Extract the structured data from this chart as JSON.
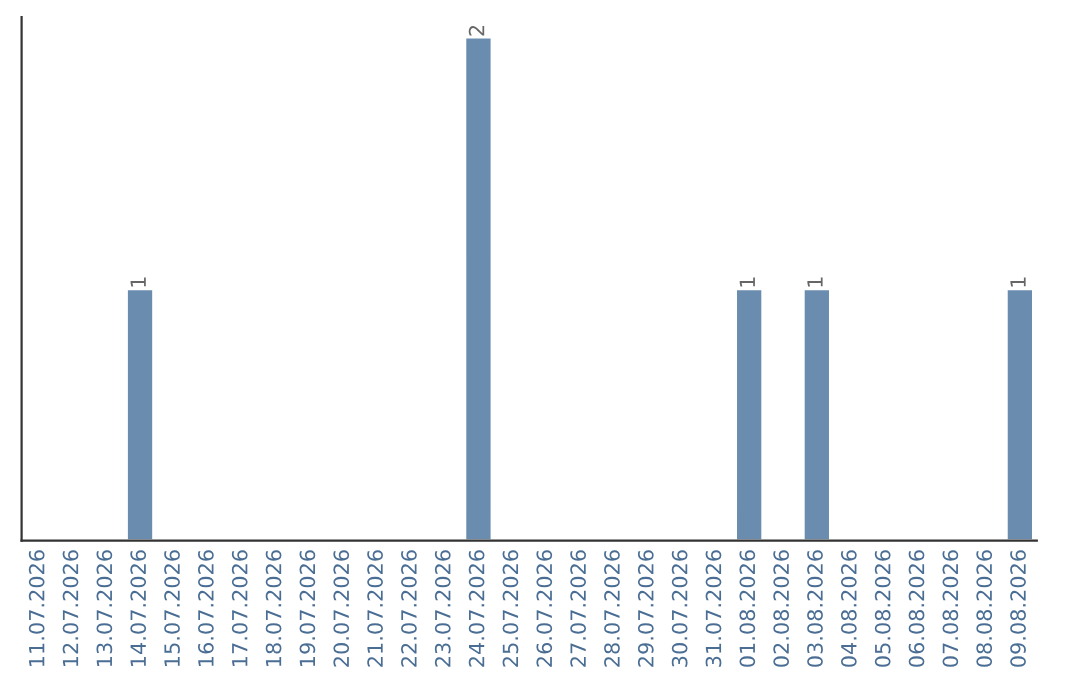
{
  "chart_data": {
    "type": "bar",
    "categories": [
      "11.07.2026",
      "12.07.2026",
      "13.07.2026",
      "14.07.2026",
      "15.07.2026",
      "16.07.2026",
      "17.07.2026",
      "18.07.2026",
      "19.07.2026",
      "20.07.2026",
      "21.07.2026",
      "22.07.2026",
      "23.07.2026",
      "24.07.2026",
      "25.07.2026",
      "26.07.2026",
      "27.07.2026",
      "28.07.2026",
      "29.07.2026",
      "30.07.2026",
      "31.07.2026",
      "01.08.2026",
      "02.08.2026",
      "03.08.2026",
      "04.08.2026",
      "05.08.2026",
      "06.08.2026",
      "07.08.2026",
      "08.08.2026",
      "09.08.2026"
    ],
    "values": [
      0,
      0,
      0,
      1,
      0,
      0,
      0,
      0,
      0,
      0,
      0,
      0,
      0,
      2,
      0,
      0,
      0,
      0,
      0,
      0,
      0,
      1,
      0,
      1,
      0,
      0,
      0,
      0,
      0,
      1
    ],
    "value_labels": [
      null,
      null,
      null,
      "1",
      null,
      null,
      null,
      null,
      null,
      null,
      null,
      null,
      null,
      "2",
      null,
      null,
      null,
      null,
      null,
      null,
      null,
      "1",
      null,
      "1",
      null,
      null,
      null,
      null,
      null,
      "1"
    ],
    "color": "#6a8caf",
    "tick_labels": "x",
    "grid": false
  }
}
